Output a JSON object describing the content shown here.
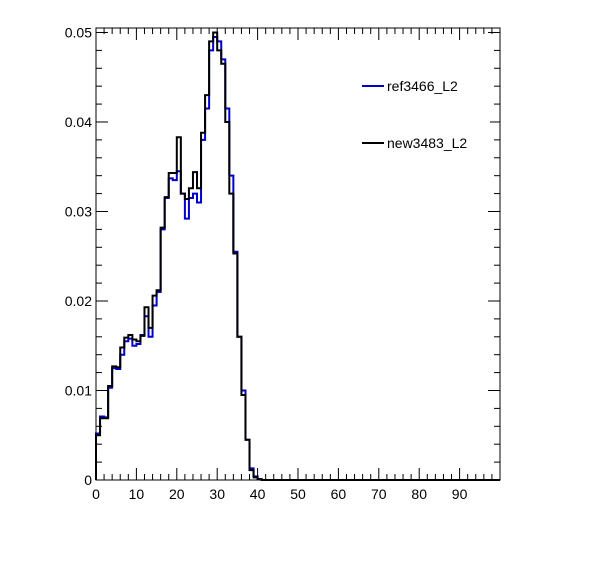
{
  "chart_data": {
    "type": "line",
    "title": "",
    "xlabel": "",
    "ylabel": "",
    "xlim": [
      0,
      100
    ],
    "ylim": [
      0,
      0.0505
    ],
    "grid": false,
    "legend_position": "top-right",
    "bin_width": 1,
    "x_tick_labels": [
      "0",
      "10",
      "20",
      "30",
      "40",
      "50",
      "60",
      "70",
      "80",
      "90"
    ],
    "y_tick_labels": [
      "0",
      "0.01",
      "0.02",
      "0.03",
      "0.04",
      "0.05"
    ],
    "series": [
      {
        "name": "ref3466_L2",
        "color": "#0000cc",
        "values": [
          0.0052,
          0.0071,
          0.007,
          0.0103,
          0.0125,
          0.0124,
          0.014,
          0.0155,
          0.0158,
          0.015,
          0.0152,
          0.0162,
          0.0183,
          0.016,
          0.0195,
          0.021,
          0.028,
          0.0315,
          0.0337,
          0.0335,
          0.0345,
          0.032,
          0.0292,
          0.0315,
          0.032,
          0.031,
          0.038,
          0.0415,
          0.048,
          0.0495,
          0.049,
          0.047,
          0.0415,
          0.034,
          0.0255,
          0.016,
          0.01,
          0.0045,
          0.0013,
          0.0004,
          0.0001,
          0,
          0,
          0,
          0,
          0,
          0,
          0,
          0,
          0,
          0,
          0,
          0,
          0,
          0,
          0,
          0,
          0,
          0,
          0,
          0,
          0,
          0,
          0,
          0,
          0,
          0,
          0,
          0,
          0,
          0,
          0,
          0,
          0,
          0,
          0,
          0,
          0,
          0,
          0,
          0,
          0,
          0,
          0,
          0,
          0,
          0,
          0,
          0,
          0,
          0,
          0,
          0,
          0,
          0,
          0,
          0,
          0,
          0,
          0
        ]
      },
      {
        "name": "new3483_L2",
        "color": "#000000",
        "values": [
          0.005,
          0.0069,
          0.0069,
          0.0105,
          0.0127,
          0.0126,
          0.0148,
          0.0159,
          0.0162,
          0.0157,
          0.0155,
          0.0161,
          0.0193,
          0.017,
          0.0206,
          0.0212,
          0.0282,
          0.0316,
          0.0343,
          0.0343,
          0.0383,
          0.032,
          0.0314,
          0.0326,
          0.0344,
          0.0326,
          0.0388,
          0.043,
          0.049,
          0.05,
          0.048,
          0.0465,
          0.04,
          0.032,
          0.0253,
          0.016,
          0.0095,
          0.0045,
          0.0011,
          0.0003,
          0.0001,
          0,
          0,
          0,
          0,
          0,
          0,
          0,
          0,
          0,
          0,
          0,
          0,
          0,
          0,
          0,
          0,
          0,
          0,
          0,
          0,
          0,
          0,
          0,
          0,
          0,
          0,
          0,
          0,
          0,
          0,
          0,
          0,
          0,
          0,
          0,
          0,
          0,
          0,
          0,
          0,
          0,
          0,
          0,
          0,
          0,
          0,
          0,
          0,
          0,
          0,
          0,
          0,
          0,
          0,
          0,
          0,
          0,
          0,
          0
        ]
      }
    ]
  }
}
